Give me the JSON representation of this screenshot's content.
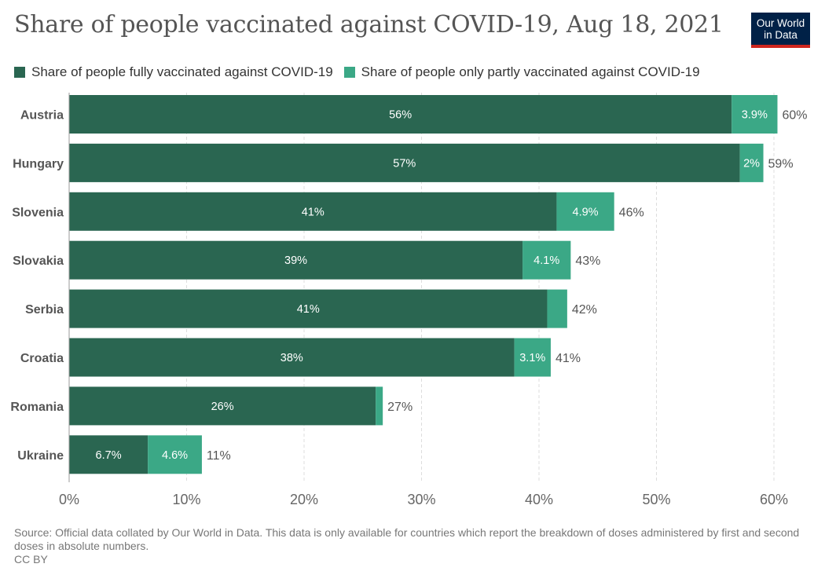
{
  "header": {
    "title": "Share of people vaccinated against COVID-19, Aug 18, 2021",
    "logo_line1": "Our World",
    "logo_line2": "in Data"
  },
  "colors": {
    "fully": "#2a6651",
    "partly": "#3ba886",
    "grid": "#dddddd",
    "axis": "#999999"
  },
  "chart_data": {
    "type": "bar",
    "orientation": "horizontal",
    "stacked": true,
    "title": "Share of people vaccinated against COVID-19, Aug 18, 2021",
    "categories": [
      "Austria",
      "Hungary",
      "Slovenia",
      "Slovakia",
      "Serbia",
      "Croatia",
      "Romania",
      "Ukraine"
    ],
    "series": [
      {
        "name": "Share of people fully vaccinated against COVID-19",
        "values": [
          56.4,
          57.1,
          41.5,
          38.6,
          40.7,
          37.9,
          26.1,
          6.7
        ],
        "labels": [
          "56%",
          "57%",
          "41%",
          "39%",
          "41%",
          "38%",
          "26%",
          "6.7%"
        ]
      },
      {
        "name": "Share of people only partly vaccinated against COVID-19",
        "values": [
          3.9,
          2.0,
          4.9,
          4.1,
          1.7,
          3.1,
          0.6,
          4.6
        ],
        "labels": [
          "3.9%",
          "2%",
          "4.9%",
          "4.1%",
          "",
          "3.1%",
          "",
          "4.6%"
        ]
      }
    ],
    "totals": [
      "60%",
      "59%",
      "46%",
      "43%",
      "42%",
      "41%",
      "27%",
      "11%"
    ],
    "xlim": [
      0,
      60
    ],
    "xticks": [
      0,
      10,
      20,
      30,
      40,
      50,
      60
    ],
    "xtick_labels": [
      "0%",
      "10%",
      "20%",
      "30%",
      "40%",
      "50%",
      "60%"
    ],
    "grid": true,
    "legend_position": "top-left"
  },
  "footer": {
    "source": "Source: Official data collated by Our World in Data. This data is only available for countries which report the breakdown of doses administered by first and second doses in absolute numbers.",
    "license": "CC BY"
  }
}
